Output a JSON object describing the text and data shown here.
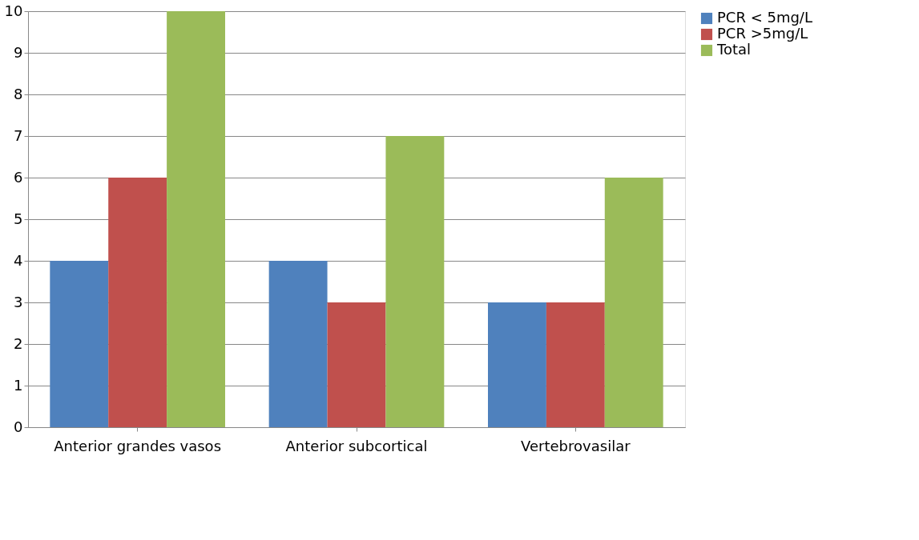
{
  "chart_data": {
    "type": "bar",
    "categories": [
      "Anterior grandes vasos",
      "Anterior subcortical",
      "Vertebrovasilar"
    ],
    "series": [
      {
        "name": "PCR < 5mg/L",
        "color": "#4f81bd",
        "values": [
          4,
          4,
          3
        ]
      },
      {
        "name": "PCR >5mg/L",
        "color": "#c0504d",
        "values": [
          6,
          3,
          3
        ]
      },
      {
        "name": "Total",
        "color": "#9bbb59",
        "values": [
          10,
          7,
          6
        ]
      }
    ],
    "ylim": [
      0,
      10
    ],
    "yticks": [
      0,
      1,
      2,
      3,
      4,
      5,
      6,
      7,
      8,
      9,
      10
    ],
    "grid": "y",
    "legend": "right"
  }
}
